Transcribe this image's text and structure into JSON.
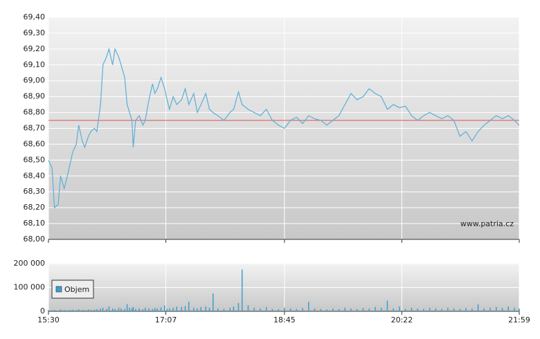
{
  "chart_data": [
    {
      "type": "line",
      "x": [
        "15:30",
        "15:33",
        "15:35",
        "15:38",
        "15:40",
        "15:43",
        "15:45",
        "15:48",
        "15:50",
        "15:53",
        "15:55",
        "15:58",
        "16:00",
        "16:03",
        "16:05",
        "16:08",
        "16:10",
        "16:13",
        "16:15",
        "16:18",
        "16:20",
        "16:23",
        "16:25",
        "16:28",
        "16:30",
        "16:33",
        "16:35",
        "16:37",
        "16:39",
        "16:40",
        "16:42",
        "16:45",
        "16:48",
        "16:50",
        "16:53",
        "16:56",
        "16:58",
        "17:00",
        "17:03",
        "17:06",
        "17:08",
        "17:10",
        "17:13",
        "17:16",
        "17:20",
        "17:23",
        "17:26",
        "17:30",
        "17:33",
        "17:36",
        "17:40",
        "17:43",
        "17:46",
        "17:50",
        "17:55",
        "18:00",
        "18:03",
        "18:07",
        "18:10",
        "18:15",
        "18:20",
        "18:25",
        "18:30",
        "18:35",
        "18:40",
        "18:45",
        "18:50",
        "18:55",
        "19:00",
        "19:05",
        "19:10",
        "19:15",
        "19:20",
        "19:25",
        "19:30",
        "19:35",
        "19:40",
        "19:45",
        "19:50",
        "19:55",
        "20:00",
        "20:05",
        "20:10",
        "20:15",
        "20:20",
        "20:25",
        "20:30",
        "20:35",
        "20:40",
        "20:45",
        "20:50",
        "20:55",
        "21:00",
        "21:05",
        "21:10",
        "21:15",
        "21:20",
        "21:25",
        "21:30",
        "21:35",
        "21:40",
        "21:45",
        "21:50",
        "21:55",
        "21:59"
      ],
      "values": [
        68.5,
        68.45,
        68.2,
        68.22,
        68.4,
        68.32,
        68.38,
        68.48,
        68.55,
        68.6,
        68.72,
        68.62,
        68.58,
        68.65,
        68.68,
        68.7,
        68.68,
        68.85,
        69.1,
        69.15,
        69.2,
        69.1,
        69.2,
        69.15,
        69.1,
        69.02,
        68.85,
        68.8,
        68.75,
        68.58,
        68.75,
        68.78,
        68.72,
        68.75,
        68.88,
        68.98,
        68.92,
        68.95,
        69.02,
        68.95,
        68.88,
        68.82,
        68.9,
        68.85,
        68.88,
        68.95,
        68.85,
        68.92,
        68.8,
        68.85,
        68.92,
        68.82,
        68.8,
        68.78,
        68.75,
        68.8,
        68.82,
        68.93,
        68.85,
        68.82,
        68.8,
        68.78,
        68.82,
        68.75,
        68.72,
        68.7,
        68.75,
        68.77,
        68.73,
        68.78,
        68.76,
        68.75,
        68.72,
        68.75,
        68.78,
        68.85,
        68.92,
        68.88,
        68.9,
        68.95,
        68.92,
        68.9,
        68.82,
        68.85,
        68.83,
        68.84,
        68.78,
        68.75,
        68.78,
        68.8,
        68.78,
        68.76,
        68.78,
        68.75,
        68.65,
        68.68,
        68.62,
        68.68,
        68.72,
        68.75,
        68.78,
        68.76,
        68.78,
        68.75,
        68.72
      ],
      "color": "#5aaed8",
      "reference_line": 68.75,
      "reference_color": "#e05050",
      "watermark": "www.patria.cz",
      "xlim": [
        "15:30",
        "21:59"
      ],
      "xticks": [
        "15:30",
        "17:07",
        "18:45",
        "20:22",
        "21:59"
      ],
      "ylim": [
        68.0,
        69.4
      ],
      "yticks": [
        {
          "value": 68.0,
          "label": "68,00"
        },
        {
          "value": 68.1,
          "label": "68,10"
        },
        {
          "value": 68.2,
          "label": "68,20"
        },
        {
          "value": 68.3,
          "label": "68,30"
        },
        {
          "value": 68.4,
          "label": "68,40"
        },
        {
          "value": 68.5,
          "label": "68,50"
        },
        {
          "value": 68.6,
          "label": "68,60"
        },
        {
          "value": 68.7,
          "label": "68,70"
        },
        {
          "value": 68.8,
          "label": "68,80"
        },
        {
          "value": 68.9,
          "label": "68,90"
        },
        {
          "value": 69.0,
          "label": "69,00"
        },
        {
          "value": 69.1,
          "label": "69,10"
        },
        {
          "value": 69.2,
          "label": "69,20"
        },
        {
          "value": 69.3,
          "label": "69,30"
        },
        {
          "value": 69.4,
          "label": "69,40"
        }
      ],
      "grid": true
    },
    {
      "type": "bar",
      "x": [
        "15:30",
        "15:33",
        "15:35",
        "15:38",
        "15:40",
        "15:43",
        "15:45",
        "15:48",
        "15:50",
        "15:53",
        "15:55",
        "15:58",
        "16:00",
        "16:03",
        "16:05",
        "16:08",
        "16:10",
        "16:13",
        "16:15",
        "16:18",
        "16:20",
        "16:23",
        "16:25",
        "16:28",
        "16:30",
        "16:33",
        "16:35",
        "16:37",
        "16:39",
        "16:40",
        "16:42",
        "16:45",
        "16:48",
        "16:50",
        "16:53",
        "16:56",
        "16:58",
        "17:00",
        "17:03",
        "17:06",
        "17:08",
        "17:10",
        "17:13",
        "17:16",
        "17:20",
        "17:23",
        "17:26",
        "17:30",
        "17:33",
        "17:36",
        "17:40",
        "17:43",
        "17:46",
        "17:50",
        "17:55",
        "18:00",
        "18:03",
        "18:07",
        "18:10",
        "18:15",
        "18:20",
        "18:25",
        "18:30",
        "18:35",
        "18:40",
        "18:45",
        "18:50",
        "18:55",
        "19:00",
        "19:05",
        "19:10",
        "19:15",
        "19:20",
        "19:25",
        "19:30",
        "19:35",
        "19:40",
        "19:45",
        "19:50",
        "19:55",
        "20:00",
        "20:05",
        "20:10",
        "20:15",
        "20:20",
        "20:25",
        "20:30",
        "20:35",
        "20:40",
        "20:45",
        "20:50",
        "20:55",
        "21:00",
        "21:05",
        "21:10",
        "21:15",
        "21:20",
        "21:25",
        "21:30",
        "21:35",
        "21:40",
        "21:45",
        "21:50",
        "21:55",
        "21:59"
      ],
      "series": [
        {
          "name": "Objem",
          "color": "#3a9fd0",
          "values": [
            5000,
            4000,
            6000,
            3000,
            8000,
            5000,
            4000,
            6000,
            7000,
            5000,
            9000,
            6000,
            5000,
            8000,
            6000,
            7000,
            9000,
            12000,
            15000,
            10000,
            20000,
            12000,
            10000,
            15000,
            12000,
            10000,
            30000,
            15000,
            12000,
            18000,
            10000,
            12000,
            9000,
            15000,
            12000,
            10000,
            14000,
            12000,
            16000,
            25000,
            10000,
            12000,
            15000,
            20000,
            18000,
            22000,
            40000,
            15000,
            12000,
            18000,
            20000,
            15000,
            75000,
            12000,
            10000,
            15000,
            20000,
            35000,
            175000,
            25000,
            15000,
            12000,
            18000,
            10000,
            9000,
            15000,
            12000,
            10000,
            14000,
            40000,
            12000,
            10000,
            8000,
            12000,
            10000,
            15000,
            12000,
            10000,
            14000,
            12000,
            18000,
            15000,
            45000,
            12000,
            20000,
            10000,
            15000,
            12000,
            10000,
            14000,
            12000,
            10000,
            15000,
            12000,
            10000,
            14000,
            12000,
            30000,
            12000,
            15000,
            18000,
            14000,
            20000,
            15000,
            12000
          ]
        }
      ],
      "legend": "lower left",
      "xlim": [
        "15:30",
        "21:59"
      ],
      "xticks": [
        "15:30",
        "17:07",
        "18:45",
        "20:22",
        "21:59"
      ],
      "ylim": [
        0,
        200000
      ],
      "yticks": [
        0,
        {
          "value": 100000,
          "label": "100 000"
        },
        {
          "value": 200000,
          "label": "200 000"
        }
      ],
      "grid": true
    }
  ]
}
